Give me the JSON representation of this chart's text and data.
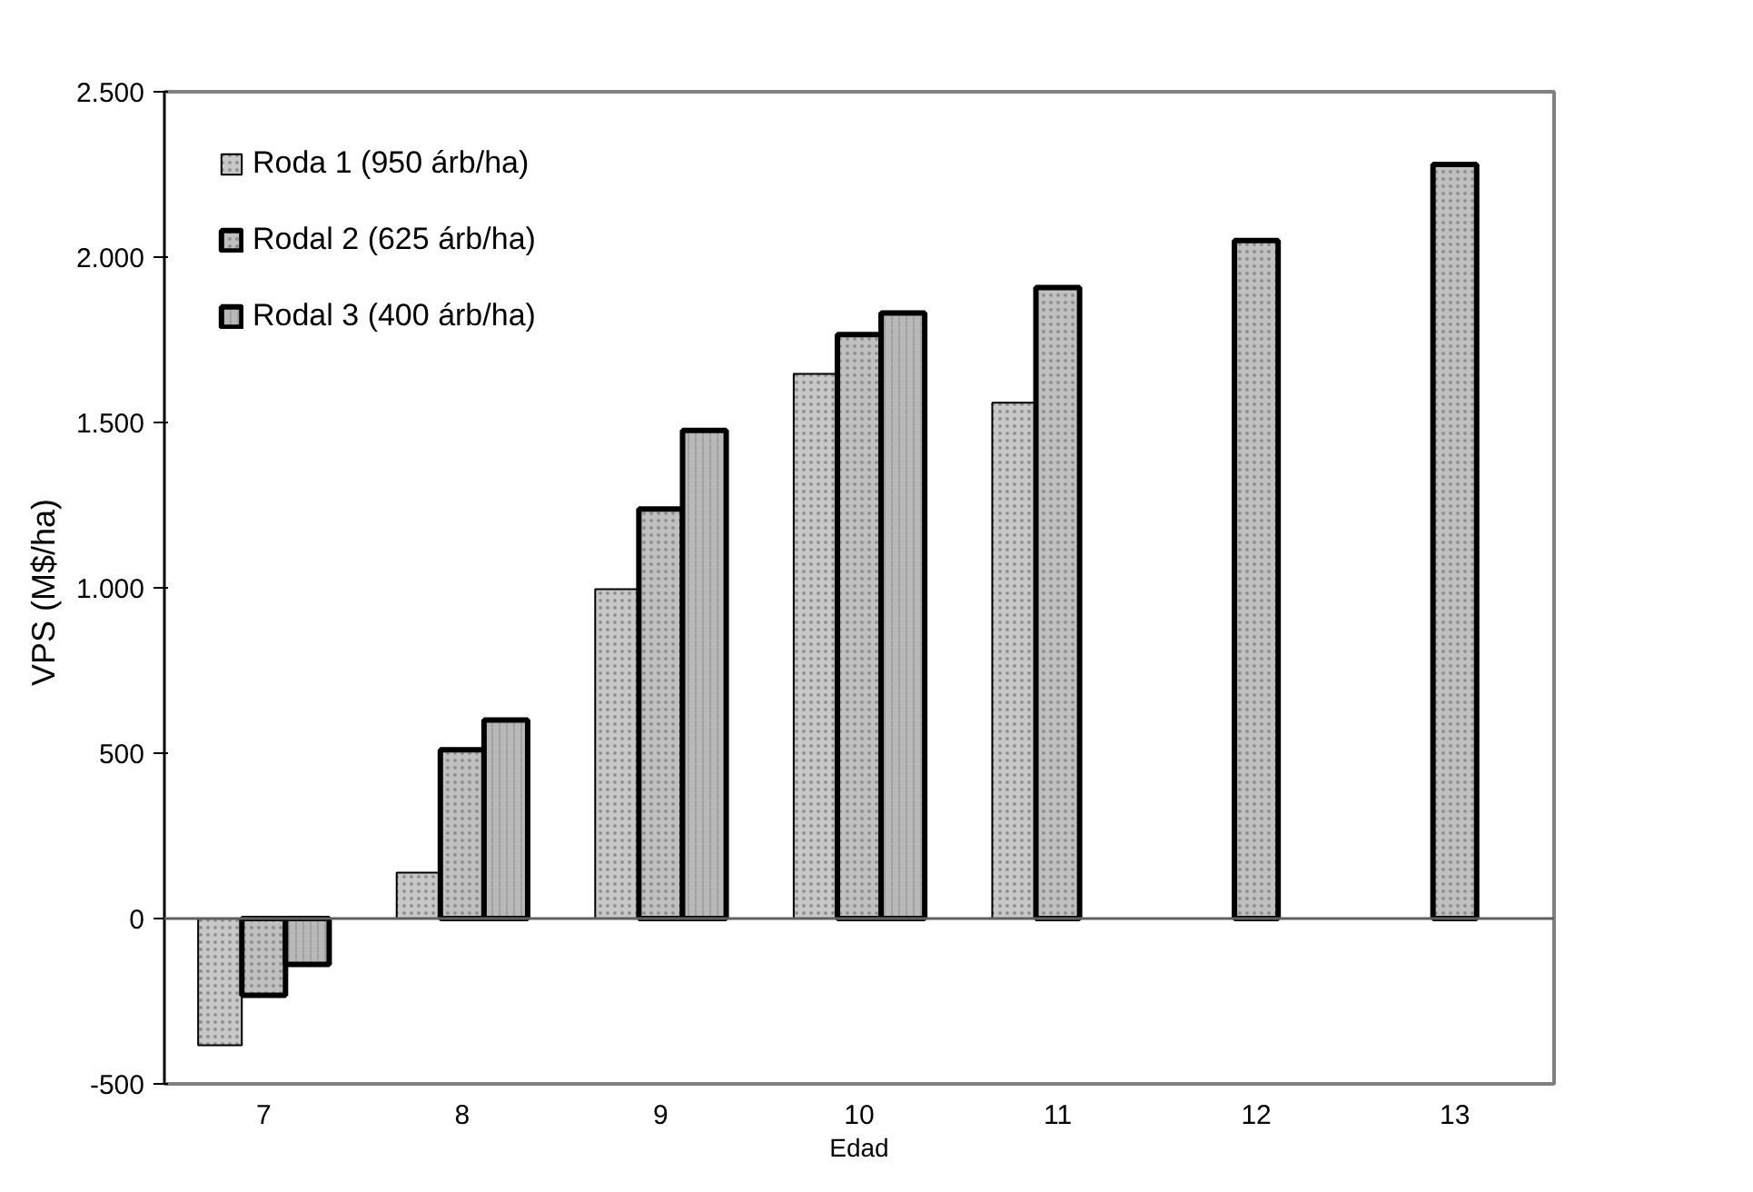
{
  "chart_data": {
    "type": "bar",
    "xlabel": "Edad",
    "ylabel": "VPS  (M$/ha)",
    "categories": [
      "7",
      "8",
      "9",
      "10",
      "11",
      "12",
      "13"
    ],
    "series": [
      {
        "name": "Roda 1 (950 árb/ha)",
        "color": "#c8c8c8",
        "values": [
          -383,
          139,
          996,
          1647,
          1560,
          null,
          null
        ]
      },
      {
        "name": "Rodal 2 (625 árb/ha)",
        "color": "#c0c0c0",
        "values": [
          -232,
          510,
          1238,
          1766,
          1908,
          2050,
          2280
        ]
      },
      {
        "name": "Rodal 3 (400 árb/ha)",
        "color": "#b8b8b8",
        "values": [
          -139,
          600,
          1476,
          1831,
          null,
          null,
          null
        ]
      }
    ],
    "ylim": [
      -500,
      2500
    ],
    "yticks": [
      {
        "value": -500,
        "label": "-500"
      },
      {
        "value": 0,
        "label": "0"
      },
      {
        "value": 500,
        "label": "500"
      },
      {
        "value": 1000,
        "label": "1.000"
      },
      {
        "value": 1500,
        "label": "1.500"
      },
      {
        "value": 2000,
        "label": "2.000"
      },
      {
        "value": 2500,
        "label": "2.500"
      }
    ],
    "ref_lines": [
      {
        "axis": "y",
        "value": 0,
        "color": "#606060"
      }
    ],
    "grid": false,
    "legend": "top left"
  }
}
